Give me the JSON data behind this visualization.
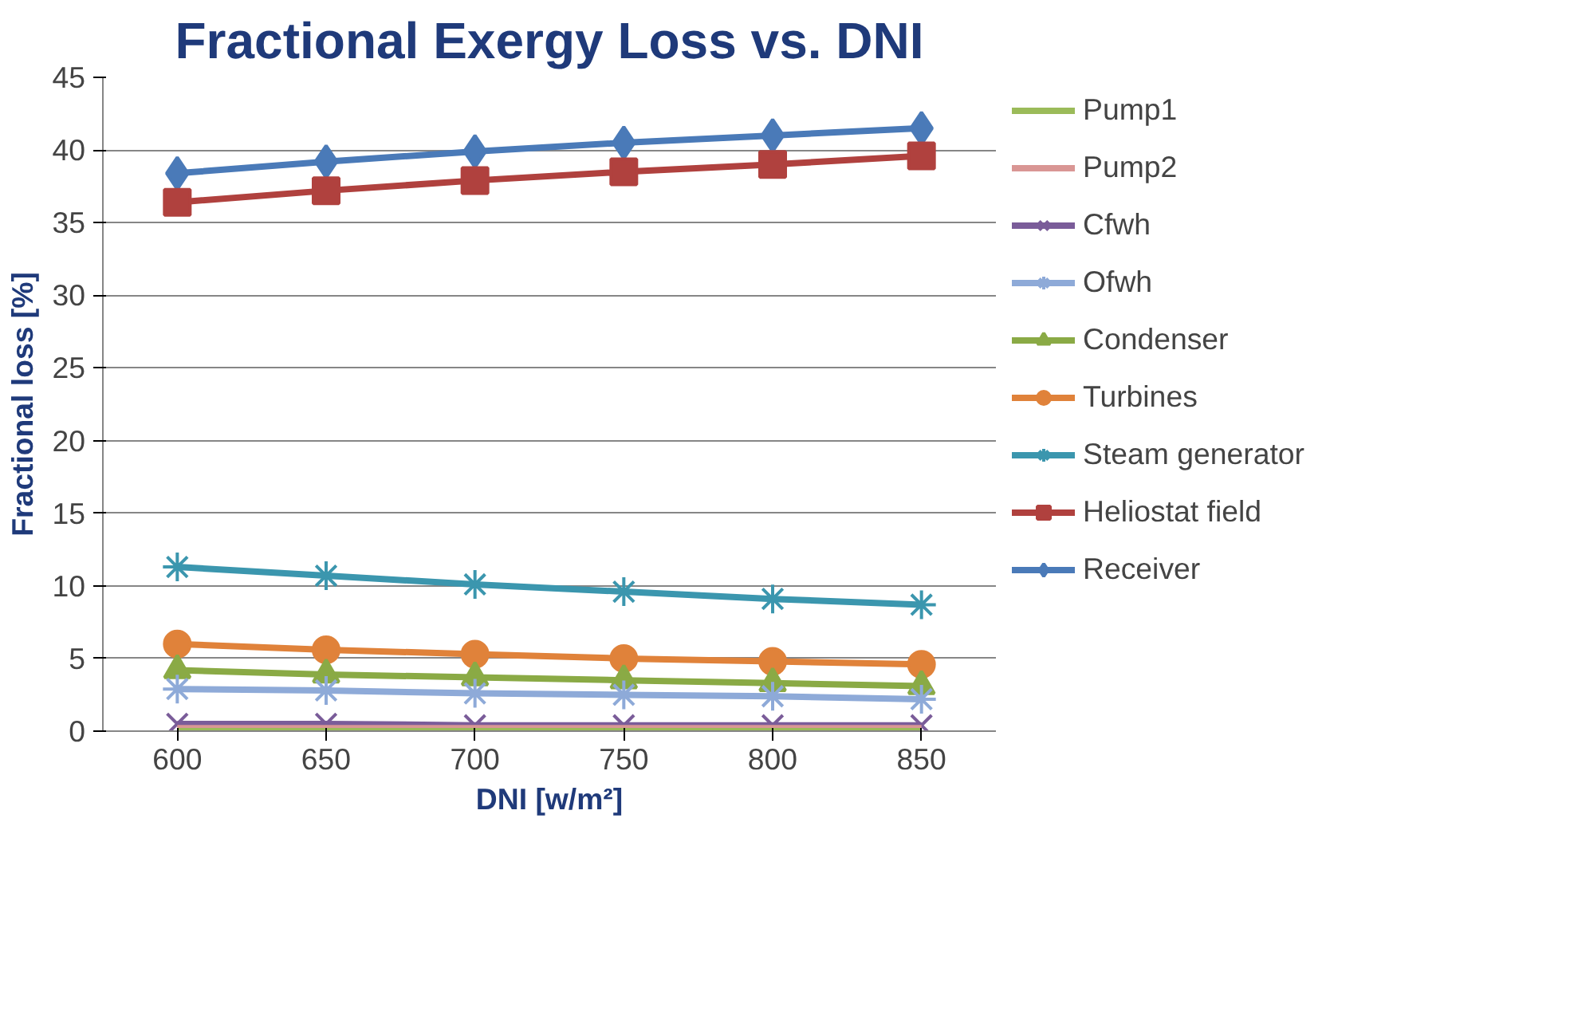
{
  "chart_data": {
    "type": "line",
    "title": "Fractional Exergy Loss vs. DNI",
    "xlabel": "DNI [w/m²]",
    "ylabel": "Fractional loss [%]",
    "categories": [
      "600",
      "650",
      "700",
      "750",
      "800",
      "850"
    ],
    "ylim": [
      0,
      45
    ],
    "yticks": [
      0,
      5,
      10,
      15,
      20,
      25,
      30,
      35,
      40,
      45
    ],
    "grid": "y",
    "legend": "right",
    "series": [
      {
        "name": "Pump1",
        "color": "#9bbb59",
        "marker": "none",
        "values": [
          0,
          0,
          0,
          0,
          0,
          0
        ]
      },
      {
        "name": "Pump2",
        "color": "#d99694",
        "marker": "none",
        "values": [
          0.2,
          0.2,
          0.2,
          0.2,
          0.2,
          0.2
        ]
      },
      {
        "name": "Cfwh",
        "color": "#7a5c99",
        "marker": "x",
        "values": [
          0.5,
          0.5,
          0.4,
          0.4,
          0.4,
          0.4
        ]
      },
      {
        "name": "Ofwh",
        "color": "#8eaad8",
        "marker": "cross",
        "values": [
          2.9,
          2.8,
          2.6,
          2.5,
          2.4,
          2.2
        ]
      },
      {
        "name": "Condenser",
        "color": "#8aaa45",
        "marker": "triangle",
        "values": [
          4.2,
          3.9,
          3.7,
          3.5,
          3.3,
          3.1
        ]
      },
      {
        "name": "Turbines",
        "color": "#e0823a",
        "marker": "circle",
        "values": [
          6.0,
          5.6,
          5.3,
          5.0,
          4.8,
          4.6
        ]
      },
      {
        "name": "Steam generator",
        "color": "#3b96ae",
        "marker": "cross",
        "values": [
          11.3,
          10.7,
          10.1,
          9.6,
          9.1,
          8.7
        ]
      },
      {
        "name": "Heliostat field",
        "color": "#b0413e",
        "marker": "square",
        "values": [
          36.4,
          37.2,
          37.9,
          38.5,
          39.0,
          39.6
        ]
      },
      {
        "name": "Receiver",
        "color": "#4a7ab8",
        "marker": "diamond",
        "values": [
          38.4,
          39.2,
          39.9,
          40.5,
          41.0,
          41.5
        ]
      }
    ]
  }
}
